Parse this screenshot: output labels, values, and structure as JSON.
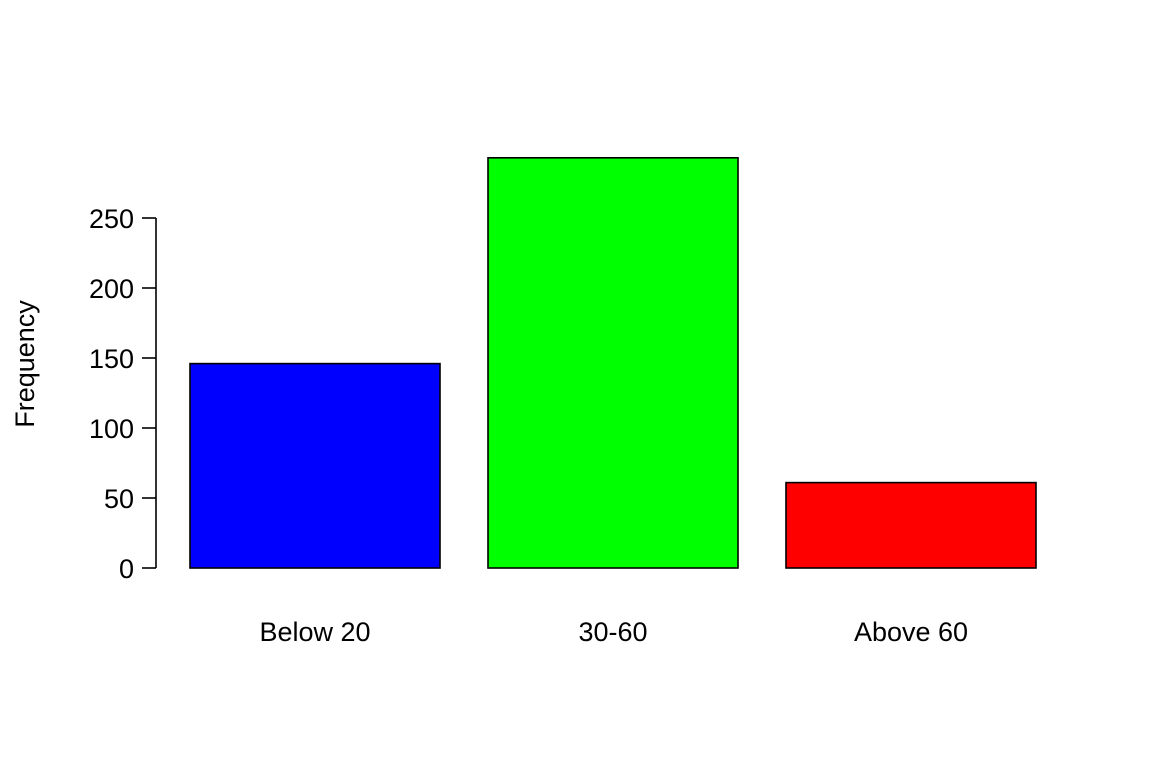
{
  "chart_data": {
    "type": "bar",
    "title": "",
    "xlabel": "",
    "ylabel": "Frequency",
    "categories": [
      "Below 20",
      "30-60",
      "Above 60"
    ],
    "values": [
      146,
      293,
      61
    ],
    "colors": [
      "#0000FF",
      "#00FF00",
      "#FF0000"
    ],
    "yticks": [
      0,
      50,
      100,
      150,
      200,
      250
    ],
    "ylim": [
      0,
      293
    ],
    "grid": false,
    "legend": "none"
  }
}
